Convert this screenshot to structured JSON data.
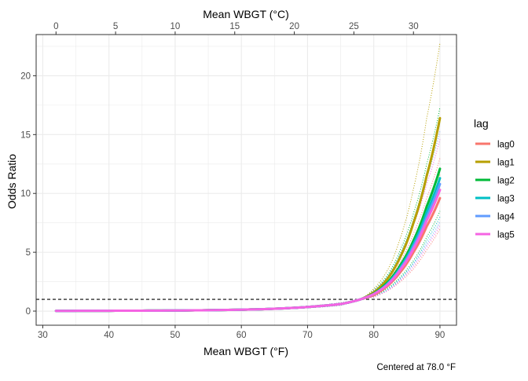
{
  "chart_data": {
    "type": "line",
    "title": "",
    "xlabel": "Mean WBGT (°F)",
    "x2label": "Mean WBGT (°C)",
    "ylabel": "Odds Ratio",
    "caption": "Centered at 78.0 °F",
    "xlim": [
      29,
      92.5
    ],
    "ylim": [
      -1.2,
      23.5
    ],
    "x_ticks": [
      30,
      40,
      50,
      60,
      70,
      80,
      90
    ],
    "x2_ticks": [
      0,
      5,
      10,
      15,
      20,
      25,
      30
    ],
    "y_ticks": [
      0,
      5,
      10,
      15,
      20
    ],
    "reference_line": {
      "y": 1,
      "style": "dashed"
    },
    "grid": true,
    "legend_title": "lag",
    "legend_position": "right",
    "series": [
      {
        "name": "lag0",
        "color": "#F8766D",
        "x": [
          32,
          40,
          50,
          60,
          65,
          70,
          75,
          78,
          80,
          82,
          84,
          86,
          88,
          90
        ],
        "values": [
          0.02,
          0.03,
          0.05,
          0.12,
          0.2,
          0.35,
          0.6,
          1.0,
          1.35,
          2.1,
          3.3,
          5.0,
          7.2,
          9.6
        ],
        "lower": [
          0.02,
          0.03,
          0.05,
          0.1,
          0.16,
          0.28,
          0.5,
          1.0,
          1.2,
          1.7,
          2.5,
          3.6,
          5.2,
          7.0
        ],
        "upper": [
          0.02,
          0.04,
          0.07,
          0.15,
          0.25,
          0.42,
          0.7,
          1.0,
          1.5,
          2.5,
          4.2,
          6.6,
          9.6,
          13.0
        ]
      },
      {
        "name": "lag1",
        "color": "#B79F00",
        "x": [
          32,
          40,
          50,
          60,
          65,
          70,
          75,
          78,
          80,
          82,
          84,
          86,
          88,
          90
        ],
        "values": [
          0.02,
          0.03,
          0.05,
          0.12,
          0.2,
          0.35,
          0.6,
          1.0,
          1.6,
          2.7,
          4.6,
          7.5,
          11.5,
          16.4
        ],
        "lower": [
          0.02,
          0.03,
          0.04,
          0.1,
          0.16,
          0.28,
          0.5,
          1.0,
          1.3,
          2.1,
          3.4,
          5.4,
          8.1,
          11.6
        ],
        "upper": [
          0.02,
          0.04,
          0.07,
          0.15,
          0.25,
          0.42,
          0.7,
          1.0,
          1.9,
          3.4,
          6.2,
          10.4,
          16.4,
          22.8
        ]
      },
      {
        "name": "lag2",
        "color": "#00BA38",
        "x": [
          32,
          40,
          50,
          60,
          65,
          70,
          75,
          78,
          80,
          82,
          84,
          86,
          88,
          90
        ],
        "values": [
          0.02,
          0.03,
          0.05,
          0.12,
          0.2,
          0.35,
          0.6,
          1.0,
          1.5,
          2.4,
          3.9,
          6.0,
          8.9,
          12.1
        ],
        "lower": [
          0.02,
          0.03,
          0.04,
          0.1,
          0.16,
          0.28,
          0.5,
          1.0,
          1.25,
          1.9,
          2.9,
          4.3,
          6.3,
          8.5
        ],
        "upper": [
          0.02,
          0.04,
          0.07,
          0.15,
          0.25,
          0.42,
          0.7,
          1.0,
          1.8,
          3.0,
          5.2,
          8.3,
          12.5,
          17.3
        ]
      },
      {
        "name": "lag3",
        "color": "#00BFC4",
        "x": [
          32,
          40,
          50,
          60,
          65,
          70,
          75,
          78,
          80,
          82,
          84,
          86,
          88,
          90
        ],
        "values": [
          0.02,
          0.03,
          0.05,
          0.12,
          0.2,
          0.35,
          0.6,
          1.0,
          1.45,
          2.3,
          3.7,
          5.7,
          8.4,
          11.3
        ],
        "lower": [
          0.02,
          0.03,
          0.04,
          0.1,
          0.16,
          0.28,
          0.5,
          1.0,
          1.2,
          1.8,
          2.8,
          4.1,
          6.0,
          8.0
        ],
        "upper": [
          0.02,
          0.04,
          0.07,
          0.15,
          0.25,
          0.42,
          0.7,
          1.0,
          1.75,
          2.9,
          4.9,
          7.8,
          11.8,
          16.0
        ]
      },
      {
        "name": "lag4",
        "color": "#619CFF",
        "x": [
          32,
          40,
          50,
          60,
          65,
          70,
          75,
          78,
          80,
          82,
          84,
          86,
          88,
          90
        ],
        "values": [
          0.02,
          0.03,
          0.05,
          0.12,
          0.2,
          0.35,
          0.6,
          1.0,
          1.45,
          2.25,
          3.6,
          5.5,
          8.0,
          10.8
        ],
        "lower": [
          0.02,
          0.03,
          0.04,
          0.1,
          0.16,
          0.28,
          0.5,
          1.0,
          1.2,
          1.75,
          2.7,
          4.0,
          5.7,
          7.6
        ],
        "upper": [
          0.02,
          0.04,
          0.07,
          0.15,
          0.25,
          0.42,
          0.7,
          1.0,
          1.75,
          2.8,
          4.8,
          7.6,
          11.3,
          15.3
        ]
      },
      {
        "name": "lag5",
        "color": "#F564E3",
        "x": [
          32,
          40,
          50,
          60,
          65,
          70,
          75,
          78,
          80,
          82,
          84,
          86,
          88,
          90
        ],
        "values": [
          0.02,
          0.03,
          0.05,
          0.12,
          0.2,
          0.35,
          0.6,
          1.0,
          1.45,
          2.2,
          3.5,
          5.3,
          7.7,
          10.3
        ],
        "lower": [
          0.02,
          0.03,
          0.04,
          0.1,
          0.16,
          0.28,
          0.5,
          1.0,
          1.2,
          1.7,
          2.6,
          3.8,
          5.5,
          7.3
        ],
        "upper": [
          0.02,
          0.04,
          0.07,
          0.15,
          0.25,
          0.42,
          0.7,
          1.0,
          1.7,
          2.8,
          4.6,
          7.3,
          10.8,
          14.6
        ]
      }
    ]
  }
}
